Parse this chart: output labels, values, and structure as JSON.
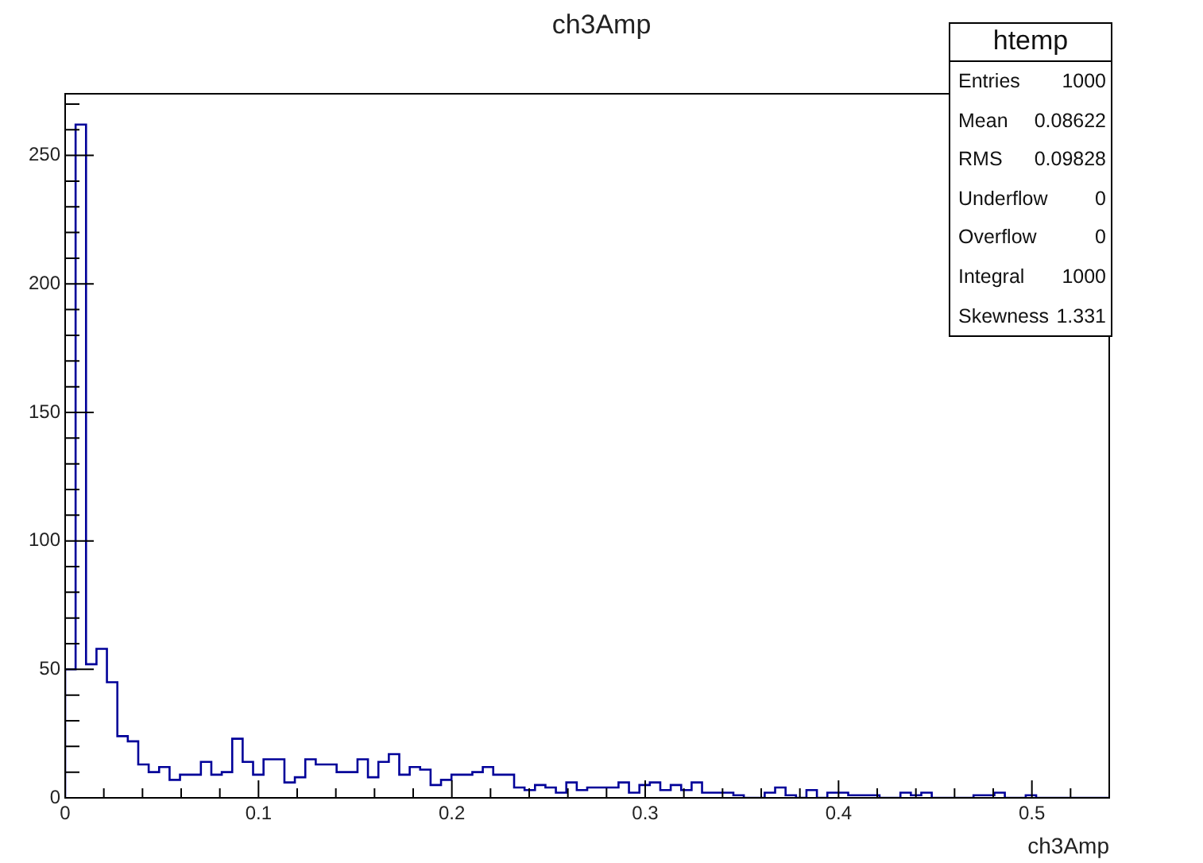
{
  "chart_data": {
    "type": "histogram",
    "title": "ch3Amp",
    "xlabel": "ch3Amp",
    "color": "#000099",
    "bins": [
      0,
      0.0054,
      0.0108,
      0.0162,
      0.0216,
      0.027,
      0.0324,
      0.0378,
      0.0432,
      0.0486,
      0.054,
      0.0594,
      0.0648,
      0.0702,
      0.0756,
      0.081,
      0.0864,
      0.0918,
      0.0972,
      0.1026,
      0.108,
      0.1134,
      0.1188,
      0.1242,
      0.1296,
      0.135,
      0.1404,
      0.1458,
      0.1512,
      0.1566,
      0.162,
      0.1674,
      0.1728,
      0.1782,
      0.1836,
      0.189,
      0.1944,
      0.1998,
      0.2052,
      0.2106,
      0.216,
      0.2214,
      0.2268,
      0.2322,
      0.2376,
      0.243,
      0.2484,
      0.2538,
      0.2592,
      0.2646,
      0.27,
      0.2754,
      0.2808,
      0.2862,
      0.2916,
      0.297,
      0.3024,
      0.3078,
      0.3132,
      0.3186,
      0.324,
      0.3294,
      0.3348,
      0.3402,
      0.3456,
      0.351,
      0.3564,
      0.3618,
      0.3672,
      0.3726,
      0.378,
      0.3834,
      0.3888,
      0.3942,
      0.3996,
      0.405,
      0.4104,
      0.4158,
      0.4212,
      0.4266,
      0.432,
      0.4374,
      0.4428,
      0.4482,
      0.4536,
      0.459,
      0.4644,
      0.4698,
      0.4752,
      0.4806,
      0.486,
      0.4914,
      0.4968,
      0.5022,
      0.5076,
      0.513,
      0.5184,
      0.5238,
      0.5292,
      0.5346,
      0.54
    ],
    "values": [
      50,
      262,
      52,
      58,
      45,
      24,
      22,
      13,
      10,
      12,
      7,
      9,
      9,
      14,
      9,
      10,
      23,
      14,
      9,
      15,
      15,
      6,
      8,
      15,
      13,
      13,
      10,
      10,
      15,
      8,
      14,
      17,
      9,
      12,
      11,
      5,
      7,
      9,
      9,
      10,
      12,
      9,
      9,
      4,
      3,
      5,
      4,
      2,
      6,
      3,
      4,
      4,
      4,
      6,
      2,
      5,
      6,
      3,
      5,
      3,
      6,
      2,
      2,
      2,
      1,
      0,
      0,
      2,
      4,
      1,
      0,
      3,
      0,
      2,
      2,
      1,
      1,
      1,
      0,
      0,
      2,
      1,
      2,
      0,
      0,
      0,
      0,
      1,
      1,
      2,
      0,
      0,
      1,
      0,
      0,
      0,
      0,
      0,
      0,
      0
    ],
    "xlim": [
      0,
      0.54
    ],
    "xticks": [
      0,
      {
        "value": 0.02,
        "label": null
      },
      {
        "value": 0.04,
        "label": null
      },
      {
        "value": 0.06,
        "label": null
      },
      {
        "value": 0.08,
        "label": null
      },
      0.1,
      {
        "value": 0.12,
        "label": null
      },
      {
        "value": 0.14,
        "label": null
      },
      {
        "value": 0.16,
        "label": null
      },
      {
        "value": 0.18,
        "label": null
      },
      0.2,
      {
        "value": 0.22,
        "label": null
      },
      {
        "value": 0.24,
        "label": null
      },
      {
        "value": 0.26,
        "label": null
      },
      {
        "value": 0.28,
        "label": null
      },
      0.3,
      {
        "value": 0.32,
        "label": null
      },
      {
        "value": 0.34,
        "label": null
      },
      {
        "value": 0.36,
        "label": null
      },
      {
        "value": 0.38,
        "label": null
      },
      0.4,
      {
        "value": 0.42,
        "label": null
      },
      {
        "value": 0.44,
        "label": null
      },
      {
        "value": 0.46,
        "label": null
      },
      {
        "value": 0.48,
        "label": null
      },
      0.5,
      {
        "value": 0.52,
        "label": null
      }
    ],
    "ylim": [
      0,
      274
    ],
    "yticks": [
      0,
      {
        "value": 10,
        "label": null
      },
      {
        "value": 20,
        "label": null
      },
      {
        "value": 30,
        "label": null
      },
      {
        "value": 40,
        "label": null
      },
      50,
      {
        "value": 60,
        "label": null
      },
      {
        "value": 70,
        "label": null
      },
      {
        "value": 80,
        "label": null
      },
      {
        "value": 90,
        "label": null
      },
      100,
      {
        "value": 110,
        "label": null
      },
      {
        "value": 120,
        "label": null
      },
      {
        "value": 130,
        "label": null
      },
      {
        "value": 140,
        "label": null
      },
      150,
      {
        "value": 160,
        "label": null
      },
      {
        "value": 170,
        "label": null
      },
      {
        "value": 180,
        "label": null
      },
      {
        "value": 190,
        "label": null
      },
      200,
      {
        "value": 210,
        "label": null
      },
      {
        "value": 220,
        "label": null
      },
      {
        "value": 230,
        "label": null
      },
      {
        "value": 240,
        "label": null
      },
      250,
      {
        "value": 260,
        "label": null
      },
      {
        "value": 270,
        "label": null
      }
    ],
    "grid": false,
    "legend": false,
    "annotations": [
      "htemp",
      "Entries",
      "1000",
      "Mean",
      "0.08622",
      "RMS",
      "0.09828",
      "Underflow",
      "0",
      "Overflow",
      "0",
      "Integral",
      "1000",
      "Skewness",
      "1.331"
    ]
  }
}
